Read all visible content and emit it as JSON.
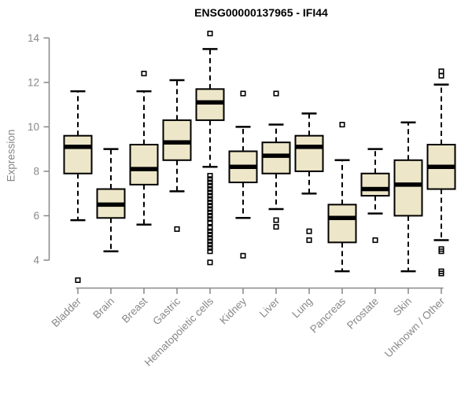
{
  "colors": {
    "background": "#FFFFFF",
    "box_fill": "#EDE6C8",
    "box_border": "#000000",
    "median": "#000000",
    "whisker": "#000000",
    "outlier": "#000000",
    "axis": "#888888",
    "tick_text": "#888888",
    "title_text": "#000000"
  },
  "chart_data": {
    "type": "boxplot",
    "title": "ENSG00000137965 - IFI44",
    "xlabel": "",
    "ylabel": "Expression",
    "ylim": [
      4,
      14
    ],
    "yticks": [
      4,
      6,
      8,
      10,
      12,
      14
    ],
    "grid": false,
    "legend": false,
    "x_label_rotation_deg": 45,
    "categories": [
      "Bladder",
      "Brain",
      "Breast",
      "Gastric",
      "Hematopoietic cells",
      "Kidney",
      "Liver",
      "Lung",
      "Pancreas",
      "Prostate",
      "Skin",
      "Unknown / Other"
    ],
    "series": [
      {
        "name": "Bladder",
        "whisker_low": 5.8,
        "q1": 7.9,
        "median": 9.1,
        "q3": 9.6,
        "whisker_high": 11.6,
        "outliers": [
          3.1
        ]
      },
      {
        "name": "Brain",
        "whisker_low": 4.4,
        "q1": 5.9,
        "median": 6.5,
        "q3": 7.2,
        "whisker_high": 9.0,
        "outliers": []
      },
      {
        "name": "Breast",
        "whisker_low": 5.6,
        "q1": 7.4,
        "median": 8.1,
        "q3": 9.2,
        "whisker_high": 11.6,
        "outliers": [
          12.4
        ]
      },
      {
        "name": "Gastric",
        "whisker_low": 7.1,
        "q1": 8.5,
        "median": 9.3,
        "q3": 10.3,
        "whisker_high": 12.1,
        "outliers": [
          5.4
        ]
      },
      {
        "name": "Hematopoietic cells",
        "whisker_low": 8.2,
        "q1": 10.3,
        "median": 11.1,
        "q3": 11.7,
        "whisker_high": 13.5,
        "outliers": [
          14.2,
          7.8,
          7.65,
          7.5,
          7.35,
          7.2,
          7.05,
          6.9,
          6.75,
          6.6,
          6.45,
          6.3,
          6.15,
          6.0,
          5.85,
          5.7,
          5.45,
          5.3,
          5.15,
          5.0,
          4.85,
          4.7,
          4.55,
          4.4,
          3.9
        ]
      },
      {
        "name": "Kidney",
        "whisker_low": 5.9,
        "q1": 7.5,
        "median": 8.2,
        "q3": 8.9,
        "whisker_high": 10.0,
        "outliers": [
          11.5,
          4.2
        ]
      },
      {
        "name": "Liver",
        "whisker_low": 6.3,
        "q1": 7.9,
        "median": 8.7,
        "q3": 9.3,
        "whisker_high": 10.1,
        "outliers": [
          11.5,
          5.8,
          5.5
        ]
      },
      {
        "name": "Lung",
        "whisker_low": 7.0,
        "q1": 8.0,
        "median": 9.1,
        "q3": 9.6,
        "whisker_high": 10.6,
        "outliers": [
          5.3,
          4.9
        ]
      },
      {
        "name": "Pancreas",
        "whisker_low": 3.5,
        "q1": 4.8,
        "median": 5.9,
        "q3": 6.5,
        "whisker_high": 8.5,
        "outliers": [
          10.1
        ]
      },
      {
        "name": "Prostate",
        "whisker_low": 6.1,
        "q1": 6.9,
        "median": 7.2,
        "q3": 7.9,
        "whisker_high": 9.0,
        "outliers": [
          4.9
        ]
      },
      {
        "name": "Skin",
        "whisker_low": 3.5,
        "q1": 6.0,
        "median": 7.4,
        "q3": 8.5,
        "whisker_high": 10.2,
        "outliers": []
      },
      {
        "name": "Unknown / Other",
        "whisker_low": 4.9,
        "q1": 7.2,
        "median": 8.2,
        "q3": 9.2,
        "whisker_high": 11.9,
        "outliers": [
          12.5,
          12.3,
          4.5,
          4.4,
          3.5,
          3.4
        ]
      }
    ]
  }
}
